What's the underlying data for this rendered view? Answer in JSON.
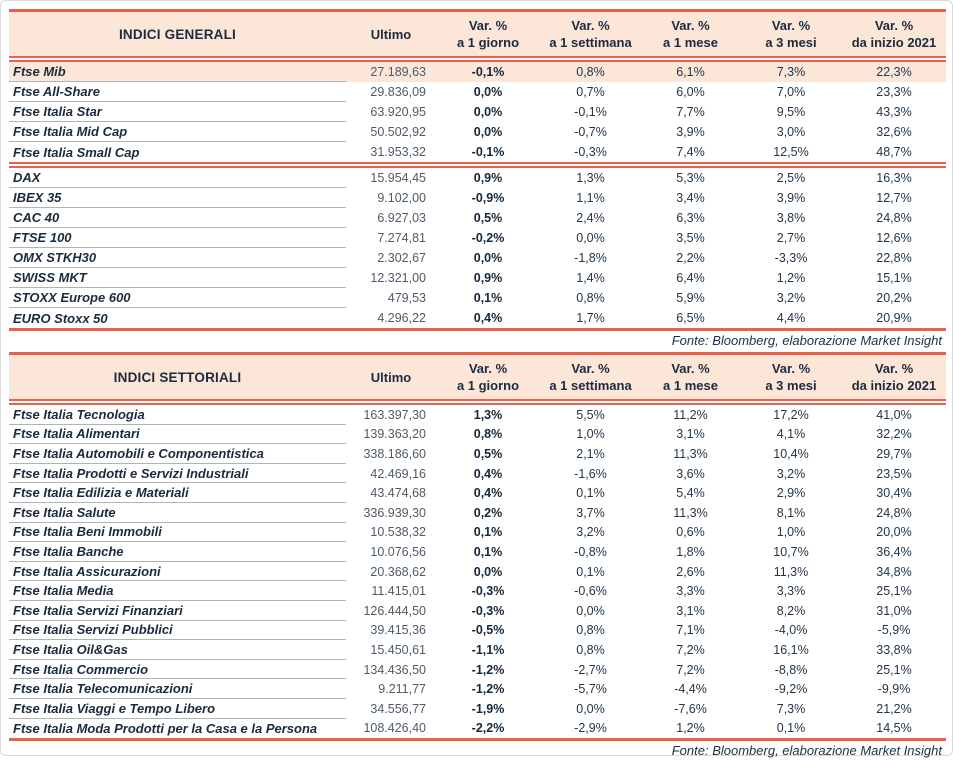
{
  "columns": {
    "ultimo": "Ultimo",
    "var_label": "Var. %",
    "periods": [
      "a 1 giorno",
      "a 1 settimana",
      "a 1 mese",
      "a 3 mesi",
      "da inizio 2021"
    ]
  },
  "tables": [
    {
      "title": "INDICI GENERALI",
      "groups": [
        {
          "rows": [
            {
              "hl": true,
              "cells": [
                "Ftse Mib",
                "27.189,63",
                "-0,1%",
                "0,8%",
                "6,1%",
                "7,3%",
                "22,3%"
              ]
            },
            {
              "cells": [
                "Ftse All-Share",
                "29.836,09",
                "0,0%",
                "0,7%",
                "6,0%",
                "7,0%",
                "23,3%"
              ]
            },
            {
              "cells": [
                "Ftse Italia Star",
                "63.920,95",
                "0,0%",
                "-0,1%",
                "7,7%",
                "9,5%",
                "43,3%"
              ]
            },
            {
              "cells": [
                "Ftse Italia Mid Cap",
                "50.502,92",
                "0,0%",
                "-0,7%",
                "3,9%",
                "3,0%",
                "32,6%"
              ]
            },
            {
              "cells": [
                "Ftse Italia Small Cap",
                "31.953,32",
                "-0,1%",
                "-0,3%",
                "7,4%",
                "12,5%",
                "48,7%"
              ]
            }
          ]
        },
        {
          "rows": [
            {
              "cells": [
                "DAX",
                "15.954,45",
                "0,9%",
                "1,3%",
                "5,3%",
                "2,5%",
                "16,3%"
              ]
            },
            {
              "cells": [
                "IBEX 35",
                "9.102,00",
                "-0,9%",
                "1,1%",
                "3,4%",
                "3,9%",
                "12,7%"
              ]
            },
            {
              "cells": [
                "CAC 40",
                "6.927,03",
                "0,5%",
                "2,4%",
                "6,3%",
                "3,8%",
                "24,8%"
              ]
            },
            {
              "cells": [
                "FTSE 100",
                "7.274,81",
                "-0,2%",
                "0,0%",
                "3,5%",
                "2,7%",
                "12,6%"
              ]
            },
            {
              "cells": [
                "OMX STKH30",
                "2.302,67",
                "0,0%",
                "-1,8%",
                "2,2%",
                "-3,3%",
                "22,8%"
              ]
            },
            {
              "cells": [
                "SWISS MKT",
                "12.321,00",
                "0,9%",
                "1,4%",
                "6,4%",
                "1,2%",
                "15,1%"
              ]
            },
            {
              "cells": [
                "STOXX Europe 600",
                "479,53",
                "0,1%",
                "0,8%",
                "5,9%",
                "3,2%",
                "20,2%"
              ]
            },
            {
              "cells": [
                "EURO Stoxx 50",
                "4.296,22",
                "0,4%",
                "1,7%",
                "6,5%",
                "4,4%",
                "20,9%"
              ]
            }
          ]
        }
      ]
    },
    {
      "title": "INDICI SETTORIALI",
      "groups": [
        {
          "rows": [
            {
              "cells": [
                "Ftse Italia Tecnologia",
                "163.397,30",
                "1,3%",
                "5,5%",
                "11,2%",
                "17,2%",
                "41,0%"
              ]
            },
            {
              "cells": [
                "Ftse Italia Alimentari",
                "139.363,20",
                "0,8%",
                "1,0%",
                "3,1%",
                "4,1%",
                "32,2%"
              ]
            },
            {
              "cells": [
                "Ftse Italia Automobili e Componentistica",
                "338.186,60",
                "0,5%",
                "2,1%",
                "11,3%",
                "10,4%",
                "29,7%"
              ]
            },
            {
              "cells": [
                "Ftse Italia Prodotti e Servizi Industriali",
                "42.469,16",
                "0,4%",
                "-1,6%",
                "3,6%",
                "3,2%",
                "23,5%"
              ]
            },
            {
              "cells": [
                "Ftse Italia Edilizia e Materiali",
                "43.474,68",
                "0,4%",
                "0,1%",
                "5,4%",
                "2,9%",
                "30,4%"
              ]
            },
            {
              "cells": [
                "Ftse Italia Salute",
                "336.939,30",
                "0,2%",
                "3,7%",
                "11,3%",
                "8,1%",
                "24,8%"
              ]
            },
            {
              "cells": [
                "Ftse Italia Beni Immobili",
                "10.538,32",
                "0,1%",
                "3,2%",
                "0,6%",
                "1,0%",
                "20,0%"
              ]
            },
            {
              "cells": [
                "Ftse Italia Banche",
                "10.076,56",
                "0,1%",
                "-0,8%",
                "1,8%",
                "10,7%",
                "36,4%"
              ]
            },
            {
              "cells": [
                "Ftse Italia Assicurazioni",
                "20.368,62",
                "0,0%",
                "0,1%",
                "2,6%",
                "11,3%",
                "34,8%"
              ]
            },
            {
              "cells": [
                "Ftse Italia Media",
                "11.415,01",
                "-0,3%",
                "-0,6%",
                "3,3%",
                "3,3%",
                "25,1%"
              ]
            },
            {
              "cells": [
                "Ftse Italia Servizi Finanziari",
                "126.444,50",
                "-0,3%",
                "0,0%",
                "3,1%",
                "8,2%",
                "31,0%"
              ]
            },
            {
              "cells": [
                "Ftse Italia Servizi Pubblici",
                "39.415,36",
                "-0,5%",
                "0,8%",
                "7,1%",
                "-4,0%",
                "-5,9%"
              ]
            },
            {
              "cells": [
                "Ftse Italia Oil&Gas",
                "15.450,61",
                "-1,1%",
                "0,8%",
                "7,2%",
                "16,1%",
                "33,8%"
              ]
            },
            {
              "cells": [
                "Ftse Italia Commercio",
                "134.436,50",
                "-1,2%",
                "-2,7%",
                "7,2%",
                "-8,8%",
                "25,1%"
              ]
            },
            {
              "cells": [
                "Ftse Italia Telecomunicazioni",
                "9.211,77",
                "-1,2%",
                "-5,7%",
                "-4,4%",
                "-9,2%",
                "-9,9%"
              ]
            },
            {
              "cells": [
                "Ftse Italia Viaggi e Tempo Libero",
                "34.556,77",
                "-1,9%",
                "0,0%",
                "-7,6%",
                "7,3%",
                "21,2%"
              ]
            },
            {
              "cells": [
                "Ftse Italia Moda Prodotti per la Casa e la Persona",
                "108.426,40",
                "-2,2%",
                "-2,9%",
                "1,2%",
                "0,1%",
                "14,5%"
              ]
            }
          ]
        }
      ]
    }
  ],
  "footer": {
    "fonte": "Fonte: Bloomberg, elaborazione Market Insight"
  },
  "colors": {
    "accent": "#E9604B",
    "header_bg": "#FCE6D8",
    "text": "#1B2B3F",
    "ultimo_text": "#4D5B6B",
    "row_separator": "#B3B3B3",
    "page_border": "#D9D9D9"
  }
}
